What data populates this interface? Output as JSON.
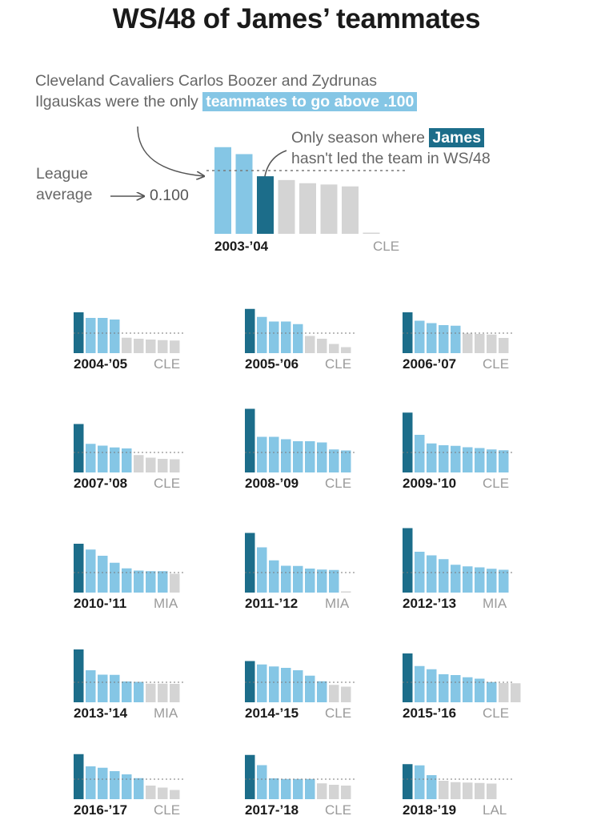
{
  "title": "WS/48 of James’ teammates",
  "annotations": {
    "boozer_note_before": "Cleveland Cavaliers Carlos Boozer and Zydrunas",
    "boozer_note_line2": "Ilgauskas were the only",
    "boozer_note_highlight": "teammates to go above .100",
    "james_note_line1": "Only season where",
    "james_note_highlight": "James",
    "james_note_line2": "hasn't led the team in WS/48",
    "league_label_1": "League",
    "league_label_2": "average",
    "league_arrow": "→",
    "league_value_label": "0.100"
  },
  "colors": {
    "james": "#1c6d8a",
    "above_avg": "#85c6e5",
    "below_avg": "#d4d4d4",
    "avg_line": "#7a7a7a"
  },
  "chart_data": {
    "type": "bar",
    "measure": "WS/48",
    "league_average": 0.1,
    "note": "In each season, bar 1 is James except 2003-'04 (bar 3); teammates above .100 light blue, below gray",
    "seasons": [
      {
        "season": "2003-’04",
        "team": "CLE",
        "james_index": 2,
        "values": [
          0.137,
          0.126,
          0.091,
          0.085,
          0.08,
          0.078,
          0.075,
          0.001
        ]
      },
      {
        "season": "2004-’05",
        "team": "CLE",
        "james_index": 0,
        "values": [
          0.204,
          0.176,
          0.176,
          0.168,
          0.077,
          0.072,
          0.068,
          0.065,
          0.063
        ]
      },
      {
        "season": "2005-’06",
        "team": "CLE",
        "james_index": 0,
        "values": [
          0.221,
          0.181,
          0.158,
          0.158,
          0.145,
          0.086,
          0.072,
          0.046,
          0.03
        ]
      },
      {
        "season": "2006-’07",
        "team": "CLE",
        "james_index": 0,
        "values": [
          0.204,
          0.162,
          0.15,
          0.14,
          0.137,
          0.098,
          0.096,
          0.093,
          0.076
        ]
      },
      {
        "season": "2007-’08",
        "team": "CLE",
        "james_index": 0,
        "values": [
          0.242,
          0.143,
          0.134,
          0.125,
          0.12,
          0.087,
          0.074,
          0.068,
          0.066
        ]
      },
      {
        "season": "2008-’09",
        "team": "CLE",
        "james_index": 0,
        "values": [
          0.318,
          0.178,
          0.178,
          0.166,
          0.156,
          0.156,
          0.15,
          0.115,
          0.11
        ]
      },
      {
        "season": "2009-’10",
        "team": "CLE",
        "james_index": 0,
        "values": [
          0.299,
          0.188,
          0.145,
          0.136,
          0.133,
          0.126,
          0.122,
          0.115,
          0.111
        ]
      },
      {
        "season": "2010-’11",
        "team": "MIA",
        "james_index": 0,
        "values": [
          0.244,
          0.215,
          0.184,
          0.149,
          0.121,
          0.11,
          0.107,
          0.107,
          0.094
        ]
      },
      {
        "season": "2011-’12",
        "team": "MIA",
        "james_index": 0,
        "values": [
          0.298,
          0.226,
          0.161,
          0.134,
          0.133,
          0.12,
          0.115,
          0.113,
          0.002
        ]
      },
      {
        "season": "2012-’13",
        "team": "MIA",
        "james_index": 0,
        "values": [
          0.322,
          0.204,
          0.186,
          0.167,
          0.139,
          0.131,
          0.126,
          0.119,
          0.114
        ]
      },
      {
        "season": "2013-’14",
        "team": "MIA",
        "james_index": 0,
        "values": [
          0.264,
          0.16,
          0.138,
          0.137,
          0.104,
          0.102,
          0.093,
          0.093,
          0.092
        ]
      },
      {
        "season": "2014-’15",
        "team": "CLE",
        "james_index": 0,
        "values": [
          0.206,
          0.189,
          0.179,
          0.172,
          0.16,
          0.133,
          0.105,
          0.087,
          0.078
        ]
      },
      {
        "season": "2015-’16",
        "team": "CLE",
        "james_index": 0,
        "values": [
          0.244,
          0.181,
          0.165,
          0.14,
          0.136,
          0.125,
          0.118,
          0.101,
          0.096,
          0.095
        ]
      },
      {
        "season": "2016-’17",
        "team": "CLE",
        "james_index": 0,
        "values": [
          0.225,
          0.164,
          0.157,
          0.14,
          0.124,
          0.105,
          0.068,
          0.058,
          0.046
        ]
      },
      {
        "season": "2017-’18",
        "team": "CLE",
        "james_index": 0,
        "values": [
          0.221,
          0.17,
          0.104,
          0.101,
          0.101,
          0.101,
          0.079,
          0.072,
          0.068
        ]
      },
      {
        "season": "2018-’19",
        "team": "LAL",
        "james_index": 0,
        "values": [
          0.175,
          0.169,
          0.12,
          0.092,
          0.085,
          0.083,
          0.081,
          0.078
        ]
      }
    ]
  }
}
